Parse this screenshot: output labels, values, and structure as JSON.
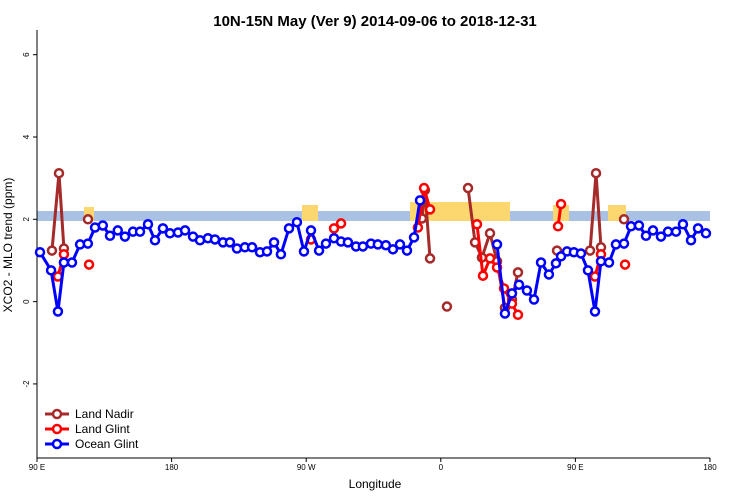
{
  "chart_data": {
    "type": "line",
    "title": "10N-15N May (Ver 9)   2014-09-06 to 2018-12-31",
    "xlabel": "Longitude",
    "ylabel": "XCO2 - MLO trend (ppm)",
    "xlim": [
      90,
      540
    ],
    "ylim": [
      -3.8,
      6.6
    ],
    "xticks": [
      {
        "value": 90,
        "label": "90 E"
      },
      180,
      {
        "value": 270,
        "label": "90 W"
      },
      {
        "value": 360,
        "label": "0"
      },
      {
        "value": 450,
        "label": "90 E"
      },
      {
        "value": 540,
        "label": "180"
      }
    ],
    "yticks": [
      -2,
      0,
      2,
      4,
      6
    ],
    "legend": "bottom-left",
    "series": [
      {
        "name": "Land Nadir",
        "color": "#a52a2a",
        "x": [
          100,
          104.7,
          108,
          null,
          124.1,
          null,
          347.4,
          349.4,
          352.8,
          null,
          364.1,
          null,
          378.2,
          382.9,
          387.5,
          392.9,
          397.6,
          402.9,
          407.6,
          411.6,
          null,
          437.7,
          null,
          459.8,
          463.8,
          467.1,
          null,
          482.5
        ],
        "values": [
          1.24,
          3.12,
          1.29,
          null,
          2.0,
          null,
          2.02,
          2.71,
          1.05,
          null,
          -0.12,
          null,
          2.76,
          1.44,
          1.07,
          1.66,
          0.98,
          -0.15,
          0.05,
          0.71,
          null,
          1.24,
          null,
          1.24,
          3.12,
          1.32,
          null,
          2.0
        ]
      },
      {
        "name": "Land Glint",
        "color": "#ff0000",
        "x": [
          104,
          108,
          null,
          124.8,
          null,
          273.2,
          null,
          288.6,
          293.3,
          null,
          344.7,
          348.8,
          352.8,
          null,
          384.2,
          388.2,
          392.9,
          397.6,
          402.3,
          407.6,
          411.6,
          null,
          438.4,
          440.4,
          null,
          463.1,
          467.1,
          null,
          483.2
        ],
        "values": [
          0.61,
          1.15,
          null,
          0.9,
          null,
          1.51,
          null,
          1.78,
          1.9,
          null,
          1.8,
          2.76,
          2.24,
          null,
          1.88,
          0.63,
          1.05,
          0.83,
          0.32,
          -0.05,
          -0.32,
          null,
          1.83,
          2.37,
          null,
          0.61,
          1.15,
          null,
          0.9
        ]
      },
      {
        "name": "Ocean Glint",
        "color": "#0000ff",
        "x": [
          92,
          99.4,
          104,
          108,
          113.4,
          118.8,
          124,
          128.8,
          134,
          138.8,
          144,
          148.8,
          154.2,
          158.9,
          164.2,
          168.9,
          174.2,
          178.9,
          184.3,
          189,
          194.3,
          199,
          204.3,
          209,
          214.4,
          219,
          223.7,
          229,
          233.8,
          239.1,
          243.8,
          248.5,
          253.1,
          258.5,
          263.8,
          268.5,
          273.2,
          278.6,
          283.2,
          288.6,
          293.3,
          297.9,
          303.3,
          307.9,
          313.3,
          317.9,
          323.3,
          328,
          332.7,
          337.4,
          342.1,
          346.1,
          null,
          397.6,
          402.9,
          407.6,
          412.3,
          417.6,
          422.3,
          427,
          432.3,
          437,
          440.4,
          444.4,
          449,
          453.7,
          458.4,
          463.1,
          467.1,
          472.5,
          477.1,
          482.5,
          487.2,
          492.5,
          497.2,
          501.9,
          507.2,
          511.9,
          517.3,
          521.9,
          527.3,
          532,
          537.3
        ],
        "values": [
          1.2,
          0.76,
          -0.24,
          0.95,
          0.95,
          1.39,
          1.41,
          1.8,
          1.85,
          1.6,
          1.73,
          1.58,
          1.7,
          1.7,
          1.88,
          1.49,
          1.78,
          1.66,
          1.68,
          1.73,
          1.58,
          1.49,
          1.54,
          1.51,
          1.44,
          1.44,
          1.29,
          1.32,
          1.32,
          1.2,
          1.22,
          1.44,
          1.15,
          1.78,
          1.93,
          1.22,
          1.73,
          1.24,
          1.41,
          1.54,
          1.46,
          1.44,
          1.34,
          1.34,
          1.41,
          1.39,
          1.37,
          1.27,
          1.39,
          1.24,
          1.56,
          2.46,
          null,
          1.39,
          -0.29,
          0.2,
          0.41,
          0.27,
          0.05,
          0.95,
          0.66,
          0.93,
          1.1,
          1.22,
          1.2,
          1.17,
          0.76,
          -0.24,
          0.98,
          0.95,
          1.39,
          1.41,
          1.83,
          1.85,
          1.6,
          1.73,
          1.58,
          1.7,
          1.7,
          1.88,
          1.49,
          1.78,
          1.66
        ]
      }
    ]
  }
}
